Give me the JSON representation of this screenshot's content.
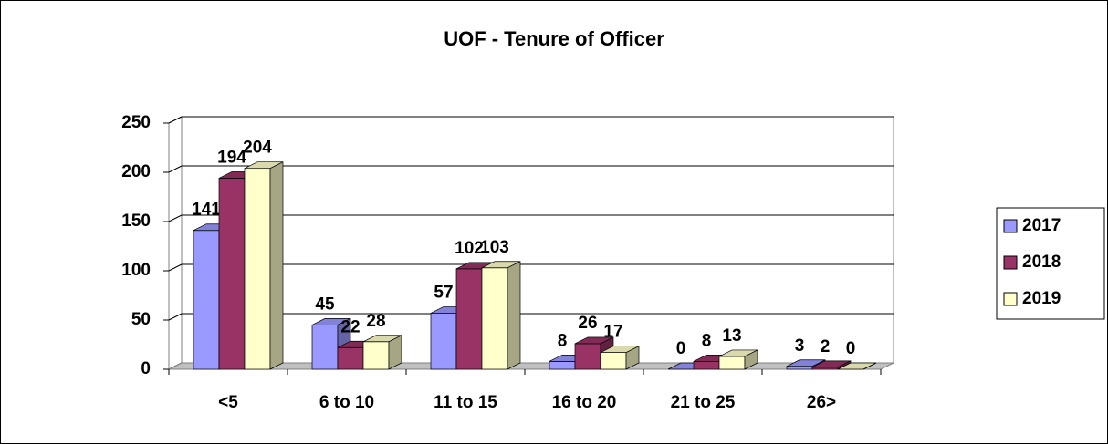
{
  "chart_data": {
    "type": "bar",
    "title": "UOF - Tenure of Officer",
    "categories": [
      "<5",
      "6 to 10",
      "11 to 15",
      "16 to 20",
      "21 to 25",
      "26>"
    ],
    "series": [
      {
        "name": "2017",
        "color": "#9999ff",
        "values": [
          141,
          45,
          57,
          8,
          0,
          3
        ]
      },
      {
        "name": "2018",
        "color": "#993366",
        "values": [
          194,
          22,
          102,
          26,
          8,
          2
        ]
      },
      {
        "name": "2019",
        "color": "#ffffcc",
        "values": [
          204,
          28,
          103,
          17,
          13,
          0
        ]
      }
    ],
    "ylim": [
      0,
      250
    ],
    "yticks": [
      0,
      50,
      100,
      150,
      200,
      250
    ],
    "grid": true,
    "legend": "right"
  }
}
